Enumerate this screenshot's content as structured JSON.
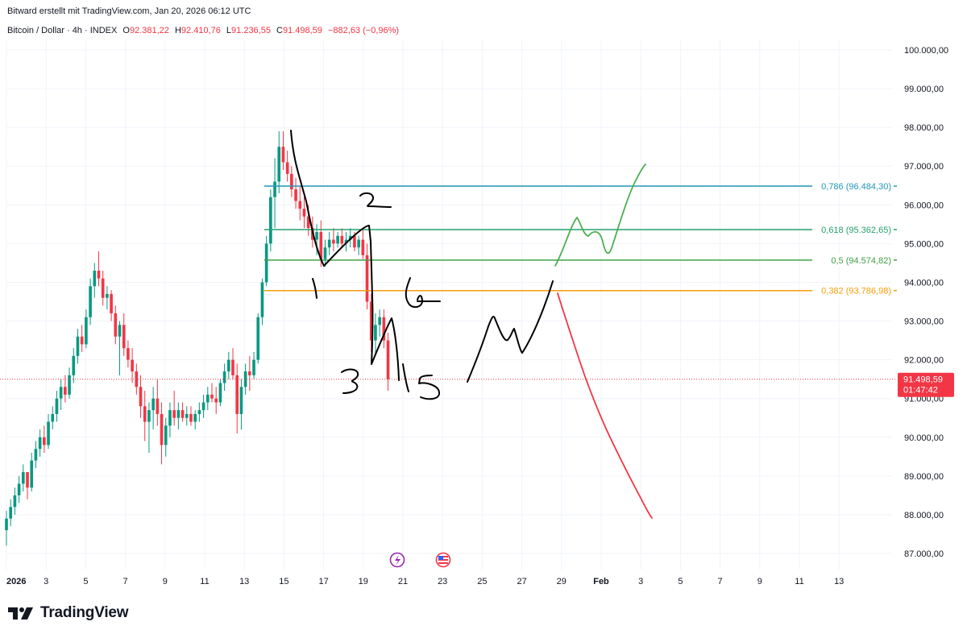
{
  "header": {
    "credit": "Bitward erstellt mit TradingView.com, Jan 20, 2026 06:12 UTC",
    "symbol": "Bitcoin / Dollar · 4h · INDEX",
    "o_label": "O",
    "o_value": "92.381,22",
    "h_label": "H",
    "h_value": "92.410,76",
    "l_label": "L",
    "l_value": "91.236,55",
    "c_label": "C",
    "c_value": "91.498,59",
    "change": "−882,63 (−0,96%)"
  },
  "brand": {
    "name": "TradingView"
  },
  "colors": {
    "up": "#089981",
    "down": "#f23645",
    "fib_0786": "#2196b5",
    "fib_0618": "#22a36b",
    "fib_05": "#43a047",
    "fib_0382": "#f59e0b",
    "ink": "#000000",
    "green_path": "#4caf50",
    "red_path": "#f23645",
    "grid": "#f0f3fa",
    "price_tag": "#f23645"
  },
  "chart_data": {
    "type": "candlestick",
    "timeframe": "4h",
    "y_axis": {
      "ticks": [
        "100.000,00",
        "99.000,00",
        "98.000,00",
        "97.000,00",
        "96.000,00",
        "95.000,00",
        "94.000,00",
        "93.000,00",
        "92.000,00",
        "91.000,00",
        "90.000,00",
        "89.000,00",
        "88.000,00",
        "87.000,00"
      ],
      "range": [
        86600,
        100600
      ]
    },
    "x_axis": {
      "ticks": [
        "2026",
        "3",
        "5",
        "7",
        "9",
        "11",
        "13",
        "15",
        "17",
        "19",
        "21",
        "23",
        "25",
        "27",
        "29",
        "Feb",
        "3",
        "5",
        "7",
        "9",
        "11",
        "13"
      ],
      "start": "2026-01-01",
      "end": "2026-02-14"
    },
    "last_price": {
      "value": "91.498,59",
      "countdown": "01:47:42",
      "raw": 91498.59
    },
    "fib_levels": [
      {
        "ratio": "0,786",
        "label": "0,786 (96.484,30)",
        "price": 96484.3,
        "color": "#2196b5"
      },
      {
        "ratio": "0,618",
        "label": "0,618 (95.362,65)",
        "price": 95362.65,
        "color": "#22a36b"
      },
      {
        "ratio": "0,5",
        "label": "0,5 (94.574,82)",
        "price": 94574.82,
        "color": "#43a047"
      },
      {
        "ratio": "0,382",
        "label": "0,382 (93.786,98)",
        "price": 93786.98,
        "color": "#f59e0b"
      }
    ],
    "fib_start": "2026-01-14",
    "candles_approx": [
      [
        87600,
        88100,
        87200,
        87900
      ],
      [
        87900,
        88400,
        87700,
        88200
      ],
      [
        88200,
        88700,
        88000,
        88500
      ],
      [
        88500,
        89000,
        88300,
        88800
      ],
      [
        88800,
        89300,
        88600,
        89100
      ],
      [
        89100,
        89100,
        88400,
        88700
      ],
      [
        88700,
        89600,
        88600,
        89400
      ],
      [
        89400,
        89900,
        89200,
        89700
      ],
      [
        89700,
        90200,
        89500,
        90000
      ],
      [
        90000,
        90300,
        89600,
        89800
      ],
      [
        89800,
        90600,
        89700,
        90400
      ],
      [
        90400,
        90800,
        90200,
        90600
      ],
      [
        90600,
        91200,
        90400,
        91000
      ],
      [
        91000,
        91500,
        90700,
        91300
      ],
      [
        91300,
        91600,
        90900,
        91100
      ],
      [
        91100,
        91800,
        91000,
        91600
      ],
      [
        91600,
        92300,
        91400,
        92100
      ],
      [
        92100,
        92800,
        91900,
        92600
      ],
      [
        92600,
        92900,
        92200,
        92400
      ],
      [
        92400,
        93300,
        92300,
        93100
      ],
      [
        93100,
        94100,
        92900,
        93900
      ],
      [
        93900,
        94500,
        93600,
        94300
      ],
      [
        94300,
        94800,
        93900,
        94100
      ],
      [
        94100,
        94300,
        93400,
        93600
      ],
      [
        93600,
        93900,
        93300,
        93700
      ],
      [
        93700,
        93800,
        93000,
        93200
      ],
      [
        93200,
        93400,
        92400,
        92600
      ],
      [
        92600,
        93000,
        91600,
        92900
      ],
      [
        92900,
        93200,
        92100,
        92300
      ],
      [
        92300,
        92500,
        91800,
        92000
      ],
      [
        92000,
        92300,
        91400,
        91700
      ],
      [
        91700,
        91900,
        91100,
        91300
      ],
      [
        91300,
        91600,
        90500,
        90800
      ],
      [
        90800,
        91200,
        89900,
        90400
      ],
      [
        90400,
        90900,
        89600,
        90700
      ],
      [
        90700,
        91300,
        90200,
        91000
      ],
      [
        91000,
        91500,
        90300,
        90600
      ],
      [
        90600,
        90900,
        89300,
        89800
      ],
      [
        89800,
        90500,
        89500,
        90300
      ],
      [
        90300,
        90900,
        90000,
        90700
      ],
      [
        90700,
        91200,
        90300,
        90500
      ],
      [
        90500,
        90900,
        90200,
        90700
      ],
      [
        90700,
        90900,
        90400,
        90500
      ],
      [
        90500,
        90800,
        90300,
        90600
      ],
      [
        90600,
        90800,
        90300,
        90400
      ],
      [
        90400,
        90700,
        90200,
        90600
      ],
      [
        90600,
        90900,
        90400,
        90700
      ],
      [
        90700,
        91100,
        90500,
        90900
      ],
      [
        90900,
        91300,
        90700,
        91100
      ],
      [
        91100,
        91400,
        90900,
        91000
      ],
      [
        91000,
        91300,
        90600,
        90900
      ],
      [
        90900,
        91500,
        90800,
        91400
      ],
      [
        91400,
        91900,
        91200,
        91700
      ],
      [
        91700,
        92200,
        91500,
        92000
      ],
      [
        92000,
        92300,
        91500,
        91600
      ],
      [
        91600,
        91900,
        90100,
        90600
      ],
      [
        90600,
        91500,
        90200,
        91300
      ],
      [
        91300,
        91900,
        91100,
        91700
      ],
      [
        91700,
        92100,
        91200,
        91600
      ],
      [
        91600,
        92200,
        91500,
        92000
      ],
      [
        92000,
        93200,
        91900,
        93100
      ],
      [
        93100,
        94100,
        92900,
        94000
      ],
      [
        94000,
        95200,
        93900,
        95000
      ],
      [
        95000,
        96400,
        94800,
        96200
      ],
      [
        96200,
        97200,
        95400,
        96600
      ],
      [
        96600,
        97900,
        96300,
        97500
      ],
      [
        97500,
        97900,
        96900,
        97100
      ],
      [
        97100,
        97400,
        96600,
        96800
      ],
      [
        96800,
        97000,
        96200,
        96400
      ],
      [
        96400,
        96700,
        95900,
        96100
      ],
      [
        96100,
        96500,
        95600,
        95900
      ],
      [
        95900,
        96200,
        95400,
        95700
      ],
      [
        95700,
        96000,
        95200,
        95400
      ],
      [
        95400,
        95700,
        94900,
        95100
      ],
      [
        95100,
        95500,
        94700,
        95300
      ],
      [
        95300,
        95600,
        94400,
        94600
      ],
      [
        94600,
        95100,
        94400,
        94900
      ],
      [
        94900,
        95300,
        94700,
        95100
      ],
      [
        95100,
        95400,
        94800,
        95000
      ],
      [
        95000,
        95300,
        94900,
        95200
      ],
      [
        95200,
        95400,
        94900,
        95000
      ],
      [
        95000,
        95300,
        94800,
        95100
      ],
      [
        95100,
        95400,
        94900,
        95200
      ],
      [
        95200,
        95300,
        94800,
        94900
      ],
      [
        94900,
        95200,
        94700,
        95100
      ],
      [
        95100,
        95400,
        94600,
        94700
      ],
      [
        94700,
        95000,
        93300,
        93500
      ],
      [
        93500,
        93700,
        92200,
        92500
      ],
      [
        92500,
        93200,
        92100,
        92900
      ],
      [
        92900,
        93300,
        92600,
        93100
      ],
      [
        93100,
        93300,
        92300,
        92500
      ],
      [
        92500,
        92700,
        91200,
        91500
      ]
    ],
    "annotations": [
      "1",
      "2",
      "3",
      "4",
      "5",
      "M"
    ],
    "projections": [
      {
        "color": "green",
        "from_price": 94400,
        "to_price": 97000
      },
      {
        "color": "red",
        "from_price": 93700,
        "to_price": 87900
      }
    ]
  }
}
